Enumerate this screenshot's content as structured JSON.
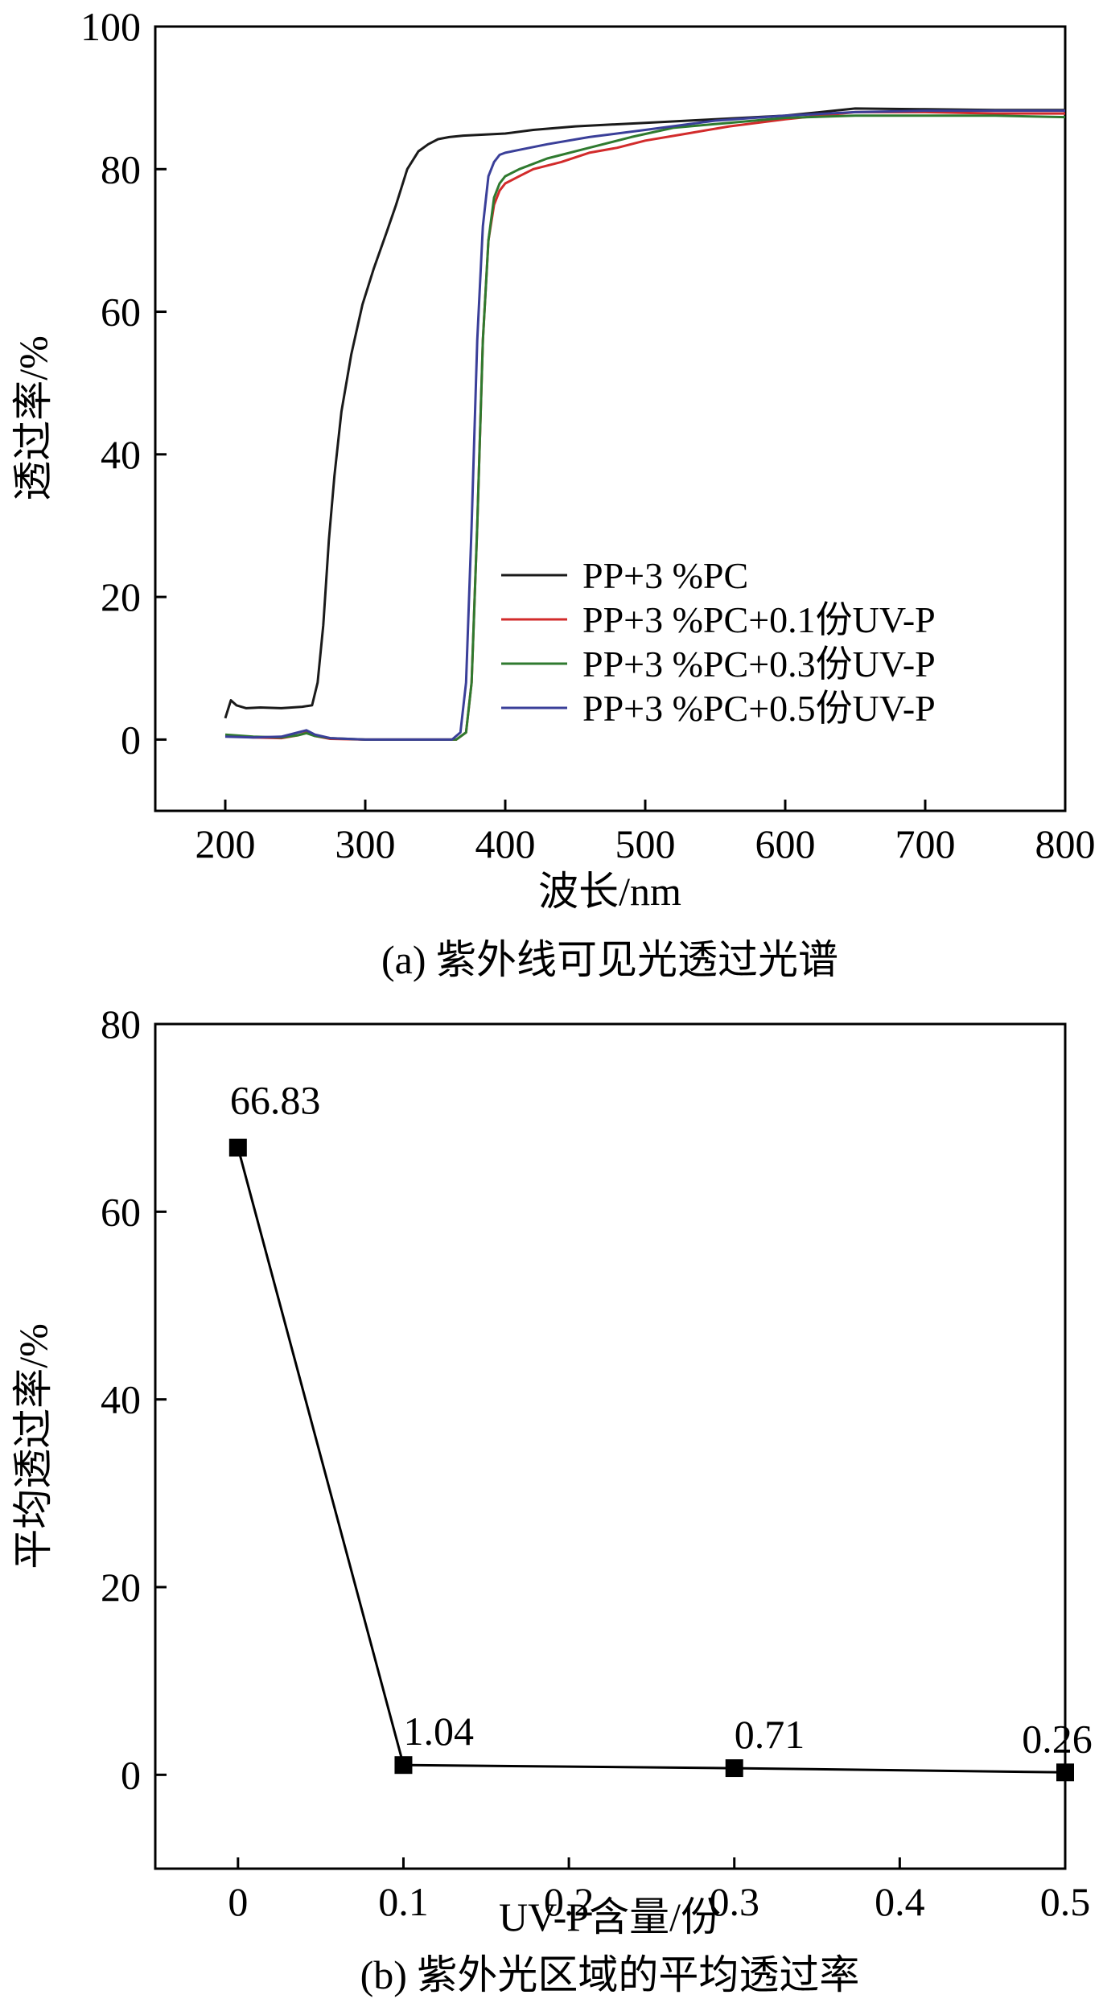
{
  "chart_data": [
    {
      "type": "line",
      "caption": "(a) 紫外线可见光透过光谱",
      "xlabel": "波长/nm",
      "ylabel": "透过率/%",
      "xlim": [
        150,
        800
      ],
      "ylim": [
        -10,
        100
      ],
      "xticks": [
        200,
        300,
        400,
        500,
        600,
        700,
        800
      ],
      "yticks": [
        0,
        20,
        40,
        60,
        80,
        100
      ],
      "legend_position": "lower-right",
      "grid": false,
      "series": [
        {
          "name": "PP+3 %PC",
          "color": "#1a1a1a",
          "points": [
            [
              200,
              3
            ],
            [
              204,
              5.5
            ],
            [
              208,
              4.8
            ],
            [
              215,
              4.4
            ],
            [
              225,
              4.5
            ],
            [
              240,
              4.4
            ],
            [
              255,
              4.6
            ],
            [
              262,
              4.8
            ],
            [
              266,
              8
            ],
            [
              270,
              16
            ],
            [
              274,
              28
            ],
            [
              278,
              37
            ],
            [
              283,
              46
            ],
            [
              290,
              54
            ],
            [
              298,
              61
            ],
            [
              306,
              66
            ],
            [
              315,
              71
            ],
            [
              322,
              75
            ],
            [
              330,
              80
            ],
            [
              338,
              82.5
            ],
            [
              345,
              83.5
            ],
            [
              352,
              84.2
            ],
            [
              360,
              84.5
            ],
            [
              370,
              84.7
            ],
            [
              380,
              84.8
            ],
            [
              400,
              85
            ],
            [
              420,
              85.5
            ],
            [
              450,
              86
            ],
            [
              500,
              86.5
            ],
            [
              550,
              87
            ],
            [
              600,
              87.5
            ],
            [
              650,
              88.5
            ],
            [
              700,
              88.4
            ],
            [
              750,
              88.3
            ],
            [
              800,
              88.3
            ]
          ]
        },
        {
          "name": "PP+3 %PC+0.1份UV-P",
          "color": "#d22b2b",
          "points": [
            [
              200,
              0.5
            ],
            [
              220,
              0.3
            ],
            [
              240,
              0.2
            ],
            [
              252,
              0.6
            ],
            [
              258,
              1
            ],
            [
              264,
              0.5
            ],
            [
              275,
              0.1
            ],
            [
              300,
              0
            ],
            [
              340,
              0
            ],
            [
              365,
              0
            ],
            [
              372,
              1
            ],
            [
              376,
              8
            ],
            [
              380,
              30
            ],
            [
              384,
              56
            ],
            [
              388,
              70
            ],
            [
              392,
              75
            ],
            [
              396,
              77
            ],
            [
              400,
              78
            ],
            [
              410,
              79
            ],
            [
              420,
              80
            ],
            [
              440,
              81
            ],
            [
              460,
              82.3
            ],
            [
              480,
              83
            ],
            [
              500,
              84
            ],
            [
              530,
              85
            ],
            [
              560,
              86
            ],
            [
              600,
              87
            ],
            [
              650,
              88
            ],
            [
              700,
              88
            ],
            [
              750,
              87.8
            ],
            [
              800,
              87.8
            ]
          ]
        },
        {
          "name": "PP+3 %PC+0.3份UV-P",
          "color": "#2f7a2f",
          "points": [
            [
              200,
              0.7
            ],
            [
              220,
              0.4
            ],
            [
              240,
              0.3
            ],
            [
              252,
              0.6
            ],
            [
              258,
              0.9
            ],
            [
              264,
              0.5
            ],
            [
              275,
              0.2
            ],
            [
              300,
              0
            ],
            [
              340,
              0
            ],
            [
              365,
              0
            ],
            [
              372,
              1
            ],
            [
              376,
              8
            ],
            [
              380,
              30
            ],
            [
              384,
              56
            ],
            [
              388,
              70
            ],
            [
              392,
              76
            ],
            [
              396,
              78
            ],
            [
              400,
              79
            ],
            [
              410,
              80
            ],
            [
              430,
              81.5
            ],
            [
              460,
              83
            ],
            [
              490,
              84.5
            ],
            [
              520,
              85.8
            ],
            [
              560,
              86.5
            ],
            [
              600,
              87.2
            ],
            [
              650,
              87.5
            ],
            [
              700,
              87.5
            ],
            [
              750,
              87.5
            ],
            [
              800,
              87.3
            ]
          ]
        },
        {
          "name": "PP+3 %PC+0.5份UV-P",
          "color": "#3a3f99",
          "points": [
            [
              200,
              0.4
            ],
            [
              220,
              0.3
            ],
            [
              240,
              0.4
            ],
            [
              252,
              1
            ],
            [
              258,
              1.3
            ],
            [
              264,
              0.7
            ],
            [
              275,
              0.2
            ],
            [
              300,
              0
            ],
            [
              340,
              0
            ],
            [
              362,
              0
            ],
            [
              368,
              1
            ],
            [
              372,
              8
            ],
            [
              376,
              30
            ],
            [
              380,
              56
            ],
            [
              384,
              72
            ],
            [
              388,
              79
            ],
            [
              392,
              81
            ],
            [
              396,
              82
            ],
            [
              400,
              82.3
            ],
            [
              410,
              82.7
            ],
            [
              430,
              83.5
            ],
            [
              460,
              84.5
            ],
            [
              500,
              85.5
            ],
            [
              550,
              86.8
            ],
            [
              600,
              87.5
            ],
            [
              650,
              88
            ],
            [
              700,
              88.2
            ],
            [
              750,
              88.2
            ],
            [
              800,
              88.2
            ]
          ]
        }
      ]
    },
    {
      "type": "line",
      "caption": "(b) 紫外光区域的平均透过率",
      "xlabel": "UV-P含量/份",
      "ylabel": "平均透过率/%",
      "xlim": [
        -0.05,
        0.5
      ],
      "ylim": [
        -10,
        80
      ],
      "xticks": [
        0,
        0.1,
        0.2,
        0.3,
        0.4,
        0.5
      ],
      "xtick_labels": [
        "0",
        "0.1",
        "0.2",
        "0.3",
        "0.4",
        "0.5"
      ],
      "yticks": [
        0,
        20,
        40,
        60,
        80
      ],
      "marker": "square",
      "grid": false,
      "x": [
        0,
        0.1,
        0.3,
        0.5
      ],
      "values": [
        66.83,
        1.04,
        0.71,
        0.26
      ],
      "data_labels": [
        "66.83",
        "1.04",
        "0.71",
        "0.26"
      ]
    }
  ]
}
